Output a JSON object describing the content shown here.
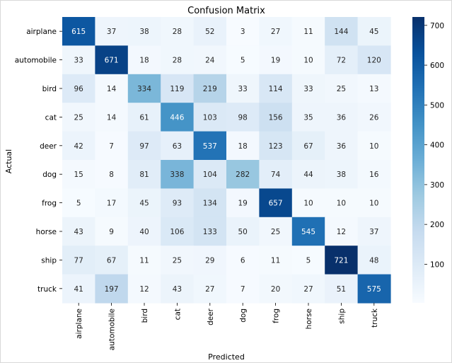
{
  "chart_data": {
    "type": "heatmap",
    "title": "Confusion Matrix",
    "xlabel": "Predicted",
    "ylabel": "Actual",
    "x_categories": [
      "airplane",
      "automobile",
      "bird",
      "cat",
      "deer",
      "dog",
      "frog",
      "horse",
      "ship",
      "truck"
    ],
    "y_categories": [
      "airplane",
      "automobile",
      "bird",
      "cat",
      "deer",
      "dog",
      "frog",
      "horse",
      "ship",
      "truck"
    ],
    "values": [
      [
        615,
        37,
        38,
        28,
        52,
        3,
        27,
        11,
        144,
        45
      ],
      [
        33,
        671,
        18,
        28,
        24,
        5,
        19,
        10,
        72,
        120
      ],
      [
        96,
        14,
        334,
        119,
        219,
        33,
        114,
        33,
        25,
        13
      ],
      [
        25,
        14,
        61,
        446,
        103,
        98,
        156,
        35,
        36,
        26
      ],
      [
        42,
        7,
        97,
        63,
        537,
        18,
        123,
        67,
        36,
        10
      ],
      [
        15,
        8,
        81,
        338,
        104,
        282,
        74,
        44,
        38,
        16
      ],
      [
        5,
        17,
        45,
        93,
        134,
        19,
        657,
        10,
        10,
        10
      ],
      [
        43,
        9,
        40,
        106,
        133,
        50,
        25,
        545,
        12,
        37
      ],
      [
        77,
        67,
        11,
        25,
        29,
        6,
        11,
        5,
        721,
        48
      ],
      [
        41,
        197,
        12,
        43,
        27,
        7,
        20,
        27,
        51,
        575
      ]
    ],
    "colorscale": "Blues",
    "value_range": [
      3,
      721
    ],
    "colorbar_ticks": [
      100,
      200,
      300,
      400,
      500,
      600,
      700
    ],
    "colors": {
      "low": "#f7fbff",
      "high": "#08306b",
      "label_dark": "#262626",
      "label_light": "#ffffff"
    },
    "grid": false,
    "colorbar_position": "right"
  }
}
